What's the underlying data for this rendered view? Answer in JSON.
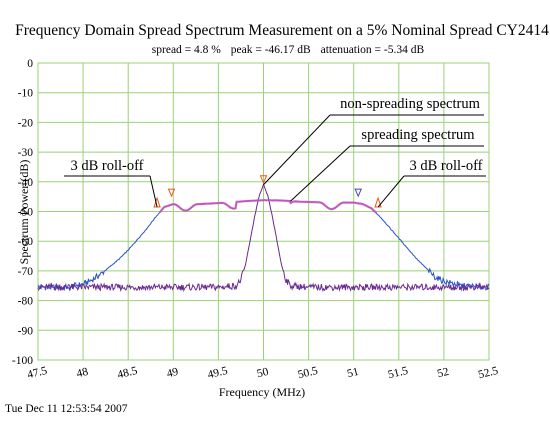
{
  "colors": {
    "grid": "#9bd174",
    "spreading": "#2a52c8",
    "non_spreading": "#6a2a90",
    "smoothed": "#cc55bb",
    "marker": "#e85a18",
    "marker_blue": "#4040c0"
  },
  "timestamp": "Tue Dec 11 12:53:54 2007",
  "chart_data": {
    "type": "line",
    "title": "Frequency Domain Spread Spectrum Measurement on a 5% Nominal Spread CY2414",
    "subtitle": {
      "spread": "spread = 4.8 %",
      "peak": "peak = -46.17 dB",
      "attenuation": "attenuation = -5.34 dB"
    },
    "xlabel": "Frequency (MHz)",
    "ylabel": "Spectrum Power (dB)",
    "xlim": [
      47.5,
      52.5
    ],
    "ylim": [
      -100,
      0
    ],
    "x_ticks": [
      "47.5",
      "48",
      "48.5",
      "49",
      "49.5",
      "50",
      "50.5",
      "51",
      "51.5",
      "52",
      "52.5"
    ],
    "y_ticks": [
      "0",
      "-10",
      "-20",
      "-30",
      "-40",
      "-50",
      "-60",
      "-70",
      "-80",
      "-90",
      "-100"
    ],
    "grid": true,
    "series": [
      {
        "key": "spreading",
        "x": [
          47.5,
          47.8,
          48.0,
          48.1,
          48.2,
          48.3,
          48.4,
          48.5,
          48.6,
          48.7,
          48.8,
          48.9,
          49.0,
          49.3,
          49.6,
          49.8,
          50.0,
          50.2,
          50.4,
          50.7,
          51.0,
          51.1,
          51.2,
          51.3,
          51.4,
          51.5,
          51.6,
          51.7,
          51.8,
          51.9,
          52.0,
          52.2,
          52.5
        ],
        "y": [
          -75.5,
          -75.5,
          -74.5,
          -73,
          -71,
          -68.5,
          -66,
          -63,
          -59.5,
          -56,
          -52,
          -48.5,
          -47.5,
          -47.5,
          -47,
          -46.5,
          -46.2,
          -46.3,
          -46.7,
          -47,
          -47,
          -47.5,
          -49,
          -52,
          -55.5,
          -59,
          -62.5,
          -66,
          -69,
          -72,
          -73.5,
          -75,
          -75.5
        ]
      },
      {
        "key": "non_spreading",
        "x": [
          47.5,
          48.0,
          48.5,
          49.0,
          49.5,
          49.7,
          49.75,
          49.8,
          49.85,
          49.9,
          49.95,
          50.0,
          50.05,
          50.1,
          50.15,
          50.2,
          50.25,
          50.3,
          50.5,
          51.0,
          51.5,
          52.0,
          52.5
        ],
        "y": [
          -75.5,
          -75.5,
          -75.5,
          -75.5,
          -75.5,
          -75,
          -73,
          -68,
          -60,
          -52,
          -45,
          -41,
          -45,
          -52,
          -60,
          -68,
          -73,
          -75,
          -75.5,
          -75.5,
          -75.5,
          -75.5,
          -75.5
        ]
      }
    ],
    "markers": [
      {
        "x": 48.82,
        "y": -48.5,
        "label": "3 dB roll-off point (left)"
      },
      {
        "x": 48.98,
        "y": -45.5,
        "label": "local peak left"
      },
      {
        "x": 50.0,
        "y": -41.0,
        "label": "peak"
      },
      {
        "x": 51.05,
        "y": -45.5,
        "label": "local peak right"
      },
      {
        "x": 51.27,
        "y": -48.5,
        "label": "3 dB roll-off point (right)"
      }
    ],
    "annotations": [
      {
        "text": "non-spreading spectrum",
        "x": 50.0,
        "y": -41.0
      },
      {
        "text": "spreading spectrum",
        "x": 50.3,
        "y": -46.5
      },
      {
        "text": "3 dB roll-off",
        "x": 48.82,
        "y": -48.5,
        "side": "left"
      },
      {
        "text": "3 dB roll-off",
        "x": 51.27,
        "y": -48.5,
        "side": "right"
      }
    ]
  }
}
